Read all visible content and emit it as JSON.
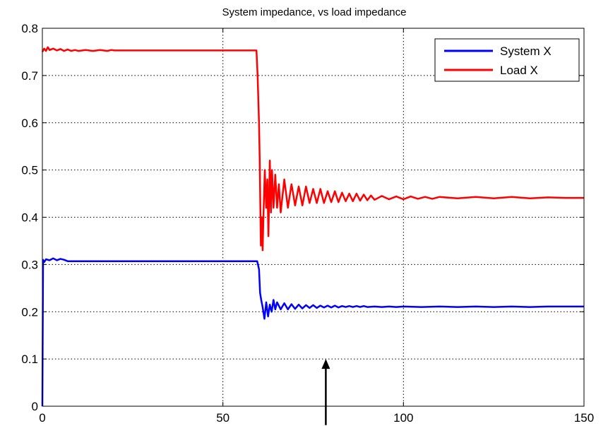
{
  "chart_data": {
    "type": "line",
    "title": "System impedance, vs load impedance",
    "xlabel": "",
    "ylabel": "",
    "xlim": [
      0,
      150
    ],
    "ylim": [
      0,
      0.8
    ],
    "x_ticks": [
      0,
      50,
      100,
      150
    ],
    "x_tick_labels": [
      "0",
      "50",
      "100",
      "150"
    ],
    "y_ticks": [
      0,
      0.1,
      0.2,
      0.3,
      0.4,
      0.5,
      0.6,
      0.7,
      0.8
    ],
    "y_tick_labels": [
      "0",
      "0.1",
      "0.2",
      "0.3",
      "0.4",
      "0.5",
      "0.6",
      "0.7",
      "0.8"
    ],
    "grid": true,
    "legend_position": "top-right",
    "series": [
      {
        "name": "System X",
        "color": "#0000ff",
        "x": [
          0,
          0.2,
          0.5,
          1,
          2,
          3,
          4,
          5,
          6,
          7,
          10,
          20,
          30,
          40,
          50,
          59.5,
          60,
          60.3,
          60.6,
          61,
          61.5,
          62,
          62.5,
          63,
          63.5,
          64,
          64.5,
          65,
          66,
          67,
          68,
          69,
          70,
          71,
          72,
          73,
          74,
          75,
          76,
          77,
          78,
          79,
          80,
          81,
          82,
          83,
          84,
          85,
          86,
          87,
          88,
          89,
          90,
          92,
          94,
          96,
          98,
          100,
          105,
          110,
          115,
          120,
          125,
          130,
          135,
          140,
          145,
          150
        ],
        "y": [
          0,
          0.31,
          0.305,
          0.311,
          0.309,
          0.313,
          0.309,
          0.312,
          0.31,
          0.307,
          0.307,
          0.307,
          0.307,
          0.307,
          0.307,
          0.307,
          0.29,
          0.24,
          0.225,
          0.21,
          0.185,
          0.22,
          0.19,
          0.215,
          0.2,
          0.225,
          0.205,
          0.22,
          0.205,
          0.218,
          0.205,
          0.216,
          0.206,
          0.215,
          0.207,
          0.214,
          0.208,
          0.214,
          0.208,
          0.213,
          0.209,
          0.213,
          0.209,
          0.213,
          0.209,
          0.212,
          0.21,
          0.212,
          0.21,
          0.212,
          0.21,
          0.212,
          0.21,
          0.211,
          0.21,
          0.211,
          0.21,
          0.211,
          0.21,
          0.211,
          0.21,
          0.211,
          0.21,
          0.211,
          0.21,
          0.211,
          0.211,
          0.211
        ]
      },
      {
        "name": "Load X",
        "color": "#ff0000",
        "x": [
          0,
          0.5,
          1,
          1.5,
          2,
          3,
          4,
          5,
          6,
          7,
          8,
          9,
          10,
          12,
          14,
          16,
          18,
          19,
          20,
          30,
          40,
          50,
          59.3,
          59.6,
          60,
          60.2,
          60.5,
          60.8,
          61,
          61.3,
          61.6,
          62,
          62.3,
          62.6,
          63,
          63.3,
          63.6,
          64,
          64.5,
          65,
          65.5,
          66,
          67,
          68,
          69,
          70,
          71,
          72,
          73,
          74,
          75,
          76,
          77,
          78,
          79,
          80,
          81,
          82,
          83,
          84,
          85,
          86,
          87,
          88,
          89,
          90,
          91,
          92,
          94,
          96,
          98,
          100,
          102,
          104,
          106,
          108,
          110,
          115,
          120,
          125,
          130,
          135,
          140,
          145,
          150
        ],
        "y": [
          0.75,
          0.757,
          0.752,
          0.76,
          0.754,
          0.757,
          0.753,
          0.756,
          0.752,
          0.755,
          0.752,
          0.754,
          0.752,
          0.754,
          0.752,
          0.754,
          0.752,
          0.754,
          0.753,
          0.753,
          0.753,
          0.753,
          0.753,
          0.7,
          0.6,
          0.52,
          0.34,
          0.4,
          0.33,
          0.42,
          0.5,
          0.42,
          0.48,
          0.36,
          0.52,
          0.41,
          0.5,
          0.42,
          0.49,
          0.42,
          0.47,
          0.41,
          0.48,
          0.42,
          0.47,
          0.425,
          0.465,
          0.425,
          0.465,
          0.43,
          0.46,
          0.43,
          0.46,
          0.43,
          0.455,
          0.432,
          0.455,
          0.432,
          0.452,
          0.434,
          0.45,
          0.434,
          0.45,
          0.435,
          0.448,
          0.436,
          0.446,
          0.437,
          0.445,
          0.438,
          0.444,
          0.438,
          0.444,
          0.439,
          0.443,
          0.439,
          0.443,
          0.44,
          0.443,
          0.44,
          0.443,
          0.44,
          0.442,
          0.441,
          0.441
        ]
      }
    ],
    "annotations": [
      {
        "type": "arrow",
        "direction": "up",
        "x": 78.5,
        "y_from": -0.04,
        "y_to": 0.1
      }
    ]
  }
}
